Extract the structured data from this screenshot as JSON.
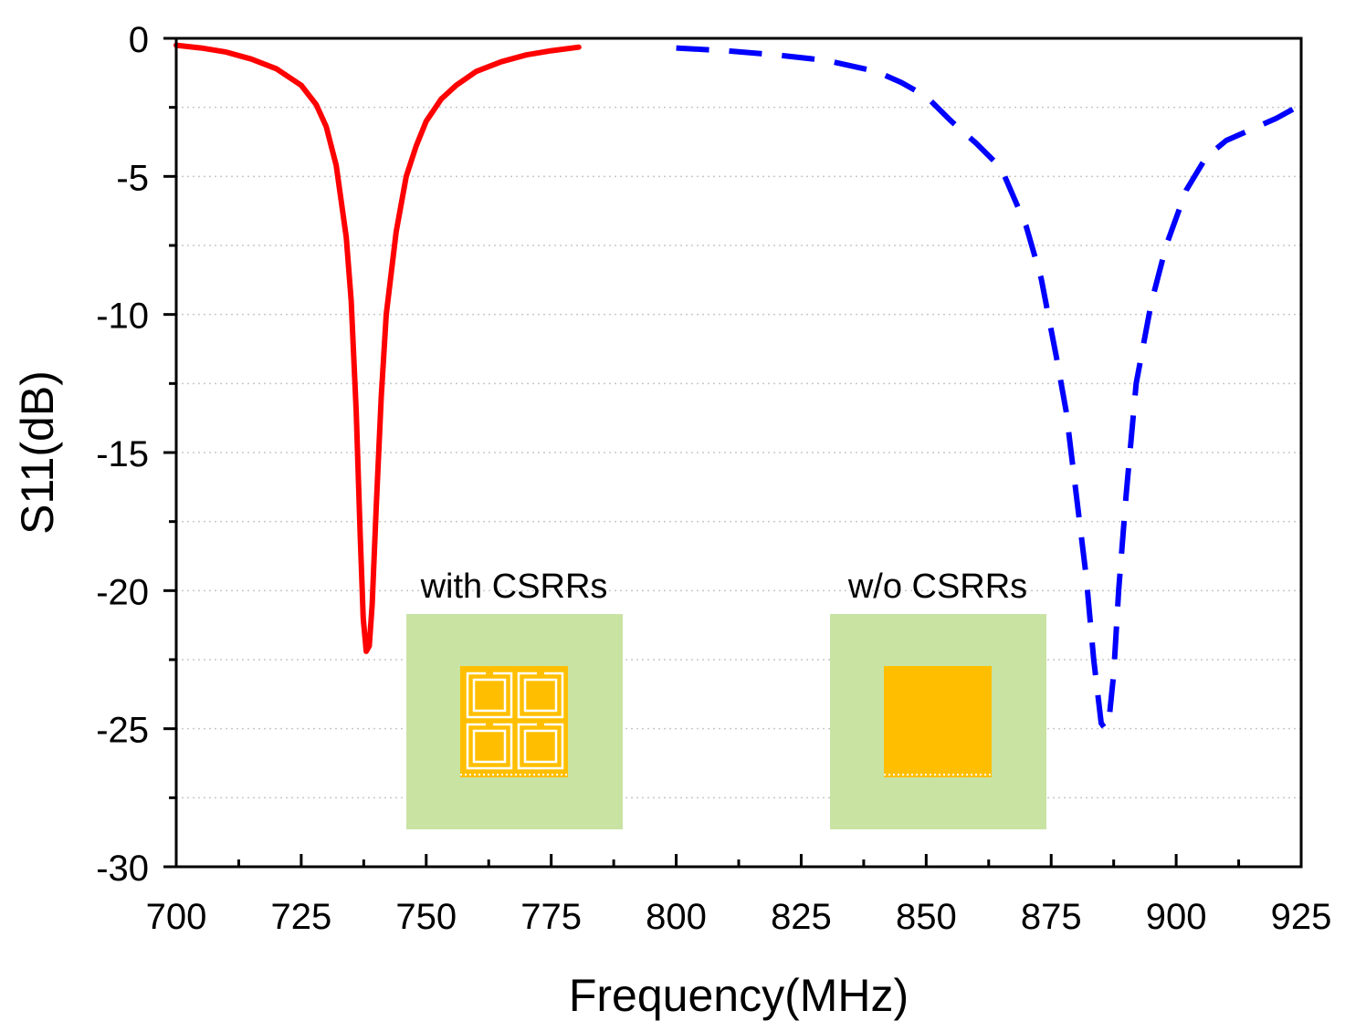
{
  "chart_data": {
    "type": "line",
    "title": "",
    "xlabel": "Frequency(MHz)",
    "ylabel": "S11(dB)",
    "xlim": [
      700,
      925
    ],
    "ylim": [
      -30,
      0
    ],
    "x_ticks": [
      700,
      725,
      750,
      775,
      800,
      825,
      850,
      875,
      900,
      925
    ],
    "x_tick_labels": [
      "700",
      "725",
      "750",
      "775",
      "800",
      "825",
      "850",
      "875",
      "900",
      "925"
    ],
    "y_ticks": [
      0,
      -5,
      -10,
      -15,
      -20,
      -25,
      -30
    ],
    "y_tick_labels": [
      "0",
      "-5",
      "-10",
      "-15",
      "-20",
      "-25",
      "-30"
    ],
    "grid": true,
    "series": [
      {
        "name": "with CSRRs",
        "color": "#ff0000",
        "style": "solid",
        "x": [
          700,
          705,
          710,
          715,
          720,
          725,
          728,
          730,
          732,
          734,
          735,
          736,
          736.8,
          737.4,
          738,
          738.6,
          739.2,
          740,
          741,
          742,
          744,
          746,
          748,
          750,
          753,
          756,
          760,
          765,
          770,
          775,
          780.5
        ],
        "y": [
          -0.25,
          -0.35,
          -0.5,
          -0.75,
          -1.1,
          -1.7,
          -2.4,
          -3.2,
          -4.6,
          -7.2,
          -9.5,
          -13.5,
          -18.0,
          -21.0,
          -22.2,
          -22.0,
          -20.5,
          -17.0,
          -13.0,
          -10.0,
          -7.0,
          -5.0,
          -3.9,
          -3.0,
          -2.2,
          -1.7,
          -1.2,
          -0.85,
          -0.6,
          -0.45,
          -0.32
        ]
      },
      {
        "name": "w/o CSRRs",
        "color": "#0000ff",
        "style": "dashed",
        "x": [
          800,
          810,
          820,
          830,
          840,
          845,
          850,
          855,
          860,
          865,
          870,
          873,
          876,
          878,
          880,
          882,
          883.5,
          885,
          885.8,
          886.5,
          887.5,
          888.5,
          890,
          892,
          895,
          898,
          902,
          906,
          910,
          915,
          920,
          925
        ],
        "y": [
          -0.35,
          -0.45,
          -0.6,
          -0.8,
          -1.2,
          -1.6,
          -2.1,
          -3.0,
          -3.8,
          -4.7,
          -6.8,
          -8.7,
          -11.5,
          -13.5,
          -16.5,
          -19.5,
          -22.5,
          -24.8,
          -25.0,
          -24.8,
          -23.0,
          -20.0,
          -16.5,
          -12.5,
          -9.6,
          -7.5,
          -5.5,
          -4.3,
          -3.7,
          -3.3,
          -2.9,
          -2.4
        ]
      }
    ],
    "annotations": [
      {
        "label": "with CSRRs",
        "kind": "inset",
        "variant": "csrr"
      },
      {
        "label": "w/o CSRRs",
        "kind": "inset",
        "variant": "plain"
      }
    ],
    "colors": {
      "substrate": "#c9e3a3",
      "patch": "#ffbf00",
      "slot": "#ffffff"
    }
  }
}
